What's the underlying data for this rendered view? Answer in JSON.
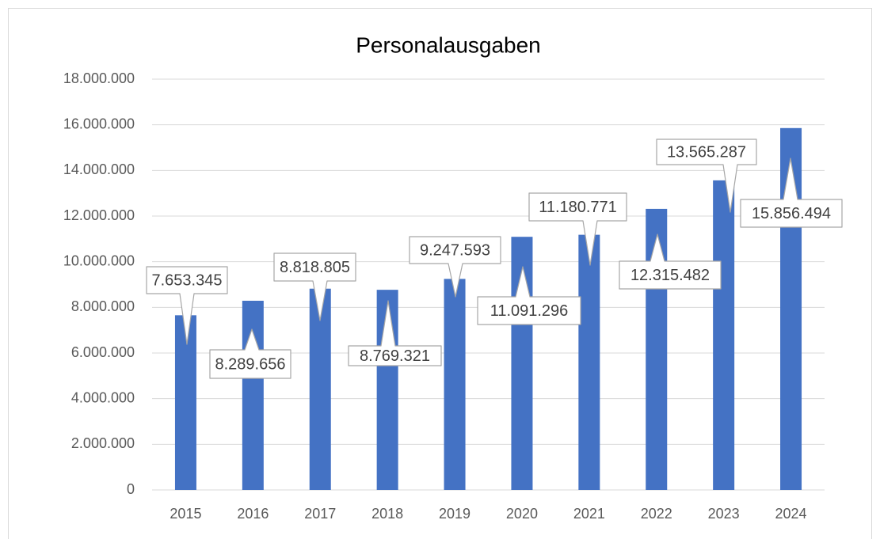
{
  "chart_data": {
    "type": "bar",
    "title": "Personalausgaben",
    "categories": [
      "2015",
      "2016",
      "2017",
      "2018",
      "2019",
      "2020",
      "2021",
      "2022",
      "2023",
      "2024"
    ],
    "values": [
      7653345,
      8289656,
      8818805,
      8769321,
      9247593,
      11091296,
      11180771,
      12315482,
      13565287,
      15856494
    ],
    "value_labels": [
      "7.653.345",
      "8.289.656",
      "8.818.805",
      "8.769.321",
      "9.247.593",
      "11.091.296",
      "11.180.771",
      "12.315.482",
      "13.565.287",
      "15.856.494"
    ],
    "color": "#4472c4",
    "ylim": [
      0,
      18000000
    ],
    "yticks": [
      0,
      {
        "value": 2000000,
        "label": "2.000.000"
      },
      {
        "value": 4000000,
        "label": "4.000.000"
      },
      {
        "value": 6000000,
        "label": "6.000.000"
      },
      {
        "value": 8000000,
        "label": "8.000.000"
      },
      {
        "value": 10000000,
        "label": "10.000.000"
      },
      {
        "value": 12000000,
        "label": "12.000.000"
      },
      {
        "value": 14000000,
        "label": "14.000.000"
      },
      {
        "value": 16000000,
        "label": "16.000.000"
      },
      {
        "value": 18000000,
        "label": "18.000.000"
      }
    ],
    "grid": true
  }
}
